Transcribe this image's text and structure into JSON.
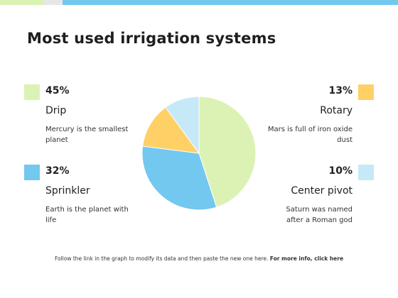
{
  "colors": {
    "green": "#dcf2b4",
    "blue": "#72c8ef",
    "yellow": "#ffd066",
    "lightblue": "#c6e9f7",
    "bar_green": "#dcf2b4",
    "bar_gray": "#e6e6e6",
    "bar_blue": "#72c8ef"
  },
  "title": "Most used irrigation systems",
  "items": [
    {
      "pct": "45%",
      "label": "Drip",
      "desc": "Mercury is the smallest planet",
      "color": "#dcf2b4"
    },
    {
      "pct": "32%",
      "label": "Sprinkler",
      "desc": "Earth is the planet with life",
      "color": "#72c8ef"
    },
    {
      "pct": "13%",
      "label": "Rotary",
      "desc": "Mars is full of iron oxide dust",
      "color": "#ffd066"
    },
    {
      "pct": "10%",
      "label": "Center pivot",
      "desc": "Saturn was named after a Roman god",
      "color": "#c6e9f7"
    }
  ],
  "footer": {
    "text": "Follow the link in the graph to modify its data and then paste the new one here.",
    "link": "For more info, click here"
  },
  "chart_data": {
    "type": "pie",
    "categories": [
      "Drip",
      "Sprinkler",
      "Rotary",
      "Center pivot"
    ],
    "values": [
      45,
      32,
      13,
      10
    ],
    "colors": [
      "#dcf2b4",
      "#72c8ef",
      "#ffd066",
      "#c6e9f7"
    ],
    "title": "Most used irrigation systems"
  }
}
